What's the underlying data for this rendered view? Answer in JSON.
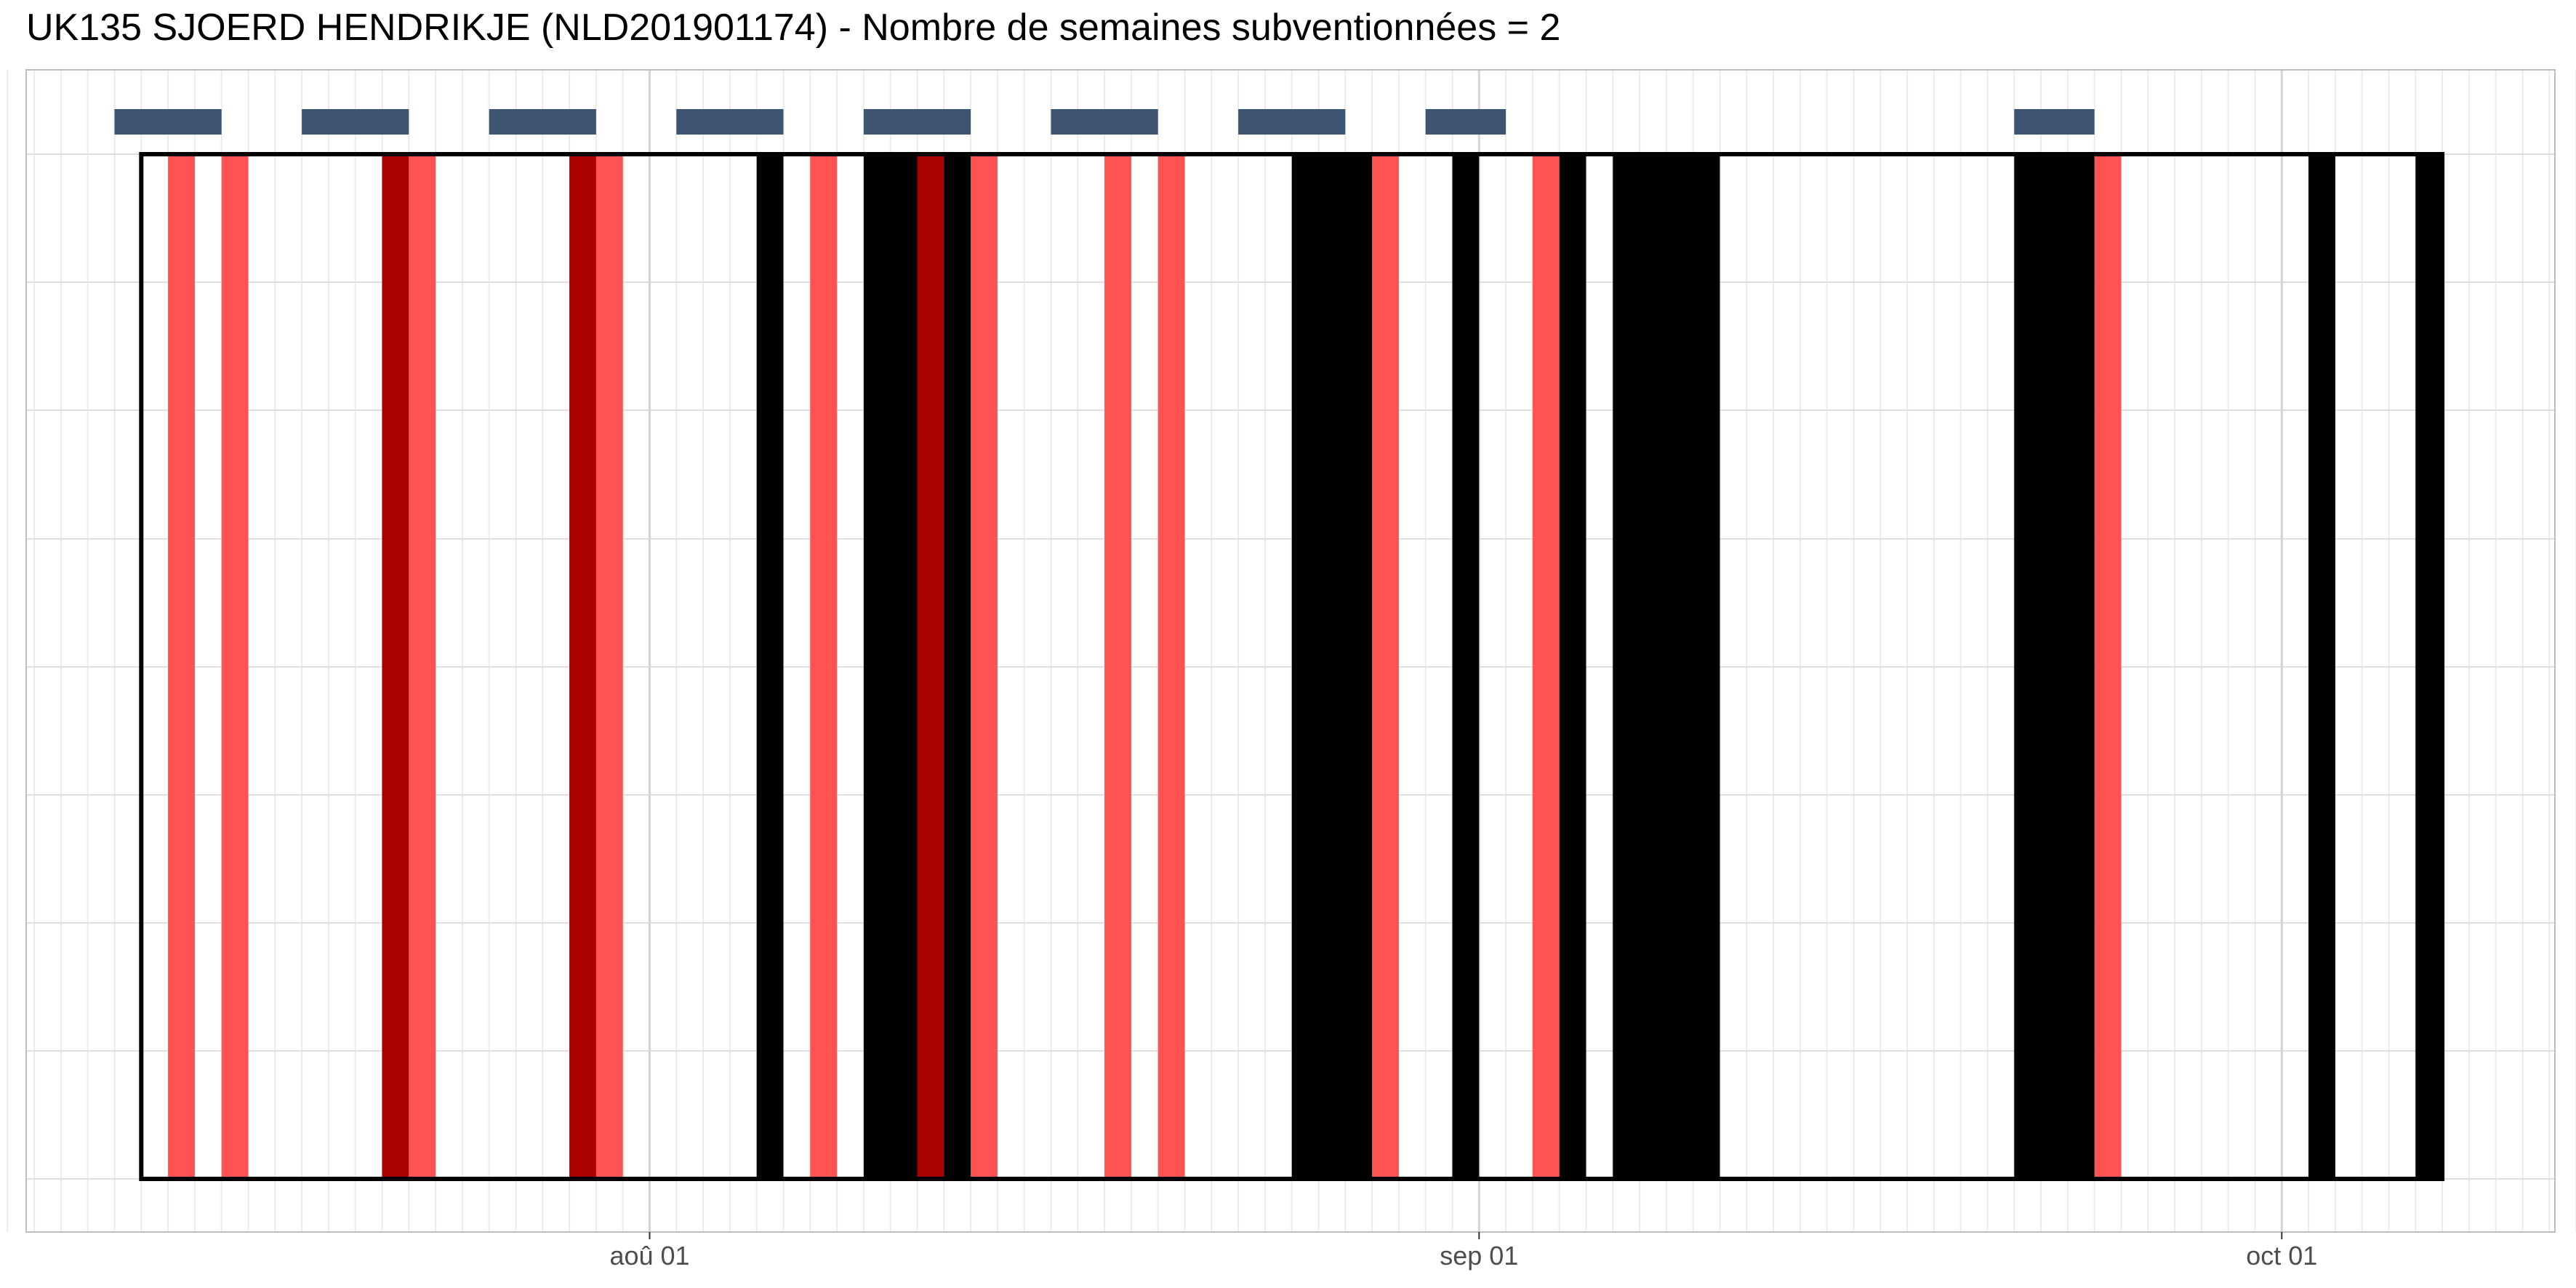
{
  "chart_data": {
    "type": "bar",
    "title": "UK135 SJOERD HENDRIKJE (NLD201901174) - Nombre de semaines subventionnées = 2",
    "xlabel": "",
    "ylabel": "",
    "x_axis": {
      "type": "date",
      "range": [
        "2019-07-08",
        "2019-10-15"
      ],
      "tick_dates": [
        "2019-08-01",
        "2019-09-01",
        "2019-10-01"
      ],
      "tick_labels": [
        "aoû 01",
        "sep 01",
        "oct 01"
      ]
    },
    "grid": true,
    "frame": {
      "start": "2019-07-13",
      "end": "2019-10-07"
    },
    "series": [
      {
        "values": [
          [
            "2019-07-14",
            "2019-07-14"
          ],
          [
            "2019-07-16",
            "2019-07-16"
          ],
          [
            "2019-07-23",
            "2019-07-23"
          ],
          [
            "2019-07-30",
            "2019-07-30"
          ],
          [
            "2019-08-07",
            "2019-08-07"
          ],
          [
            "2019-08-13",
            "2019-08-13"
          ],
          [
            "2019-08-18",
            "2019-08-18"
          ],
          [
            "2019-08-20",
            "2019-08-20"
          ],
          [
            "2019-08-28",
            "2019-08-28"
          ],
          [
            "2019-09-03",
            "2019-09-03"
          ],
          [
            "2019-09-24",
            "2019-09-24"
          ]
        ],
        "color": "#ff5252"
      },
      {
        "values": [
          [
            "2019-07-22",
            "2019-07-22"
          ],
          [
            "2019-07-29",
            "2019-07-29"
          ],
          [
            "2019-08-11",
            "2019-08-11"
          ]
        ],
        "color": "#aa0000"
      },
      {
        "values": [
          [
            "2019-08-05",
            "2019-08-05"
          ],
          [
            "2019-08-09",
            "2019-08-10"
          ],
          [
            "2019-08-12",
            "2019-08-12"
          ],
          [
            "2019-08-25",
            "2019-08-27"
          ],
          [
            "2019-08-31",
            "2019-08-31"
          ],
          [
            "2019-09-04",
            "2019-09-04"
          ],
          [
            "2019-09-06",
            "2019-09-09"
          ],
          [
            "2019-09-21",
            "2019-09-23"
          ],
          [
            "2019-10-02",
            "2019-10-02"
          ],
          [
            "2019-10-06",
            "2019-10-06"
          ]
        ],
        "color": "#000000"
      },
      {
        "values": [
          [
            "2019-07-12",
            "2019-07-15"
          ],
          [
            "2019-07-19",
            "2019-07-22"
          ],
          [
            "2019-07-26",
            "2019-07-29"
          ],
          [
            "2019-08-02",
            "2019-08-05"
          ],
          [
            "2019-08-09",
            "2019-08-12"
          ],
          [
            "2019-08-16",
            "2019-08-19"
          ],
          [
            "2019-08-23",
            "2019-08-26"
          ],
          [
            "2019-08-30",
            "2019-09-01"
          ],
          [
            "2019-09-21",
            "2019-09-23"
          ]
        ],
        "color": "#3d5570"
      }
    ]
  }
}
